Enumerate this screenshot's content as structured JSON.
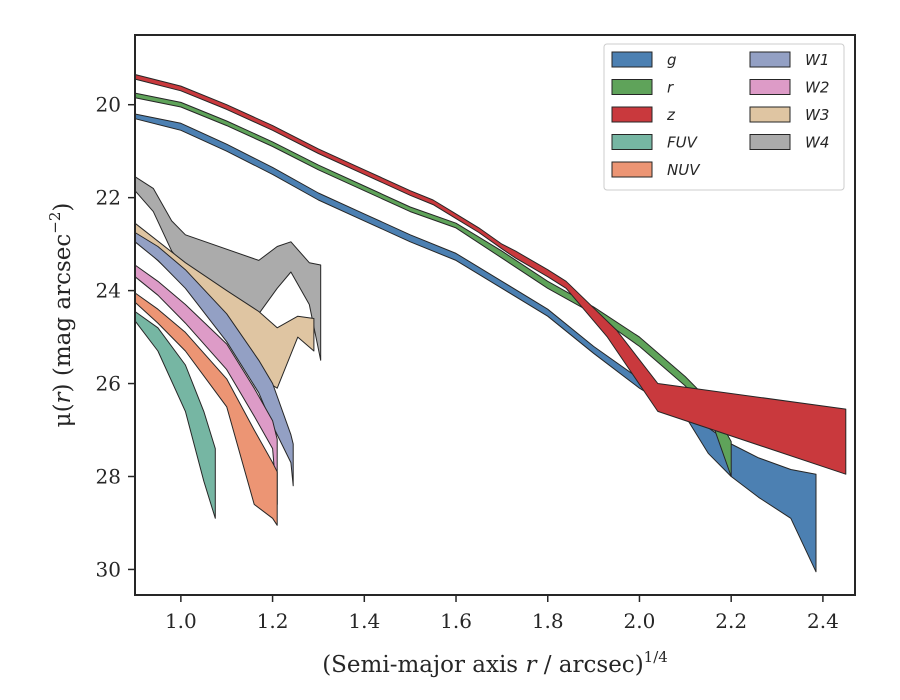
{
  "chart_data": {
    "type": "area",
    "xlabel_main": "(Semi-major axis ",
    "xlabel_var": "r",
    "xlabel_rest": " / arcsec)",
    "xlabel_sup": "1/4",
    "ylabel_main": "μ(",
    "ylabel_var": "r",
    "ylabel_rest": ") (mag arcsec",
    "ylabel_sup": "−2",
    "ylabel_end": ")",
    "xlim": [
      0.9,
      2.47
    ],
    "ylim": [
      30.55,
      18.5
    ],
    "y_inverted": true,
    "xticks": [
      1.0,
      1.2,
      1.4,
      1.6,
      1.8,
      2.0,
      2.2,
      2.4
    ],
    "xtick_labels": [
      "1.0",
      "1.2",
      "1.4",
      "1.6",
      "1.8",
      "2.0",
      "2.2",
      "2.4"
    ],
    "yticks": [
      20,
      22,
      24,
      26,
      28,
      30
    ],
    "ytick_labels": [
      "20",
      "22",
      "24",
      "26",
      "28",
      "30"
    ],
    "grid": false,
    "legend_position": "top-right",
    "legend_columns": 2,
    "series": [
      {
        "name": "W4",
        "color": "#ababab",
        "upper": [
          [
            0.9,
            21.55
          ],
          [
            0.94,
            21.8
          ],
          [
            0.98,
            22.5
          ],
          [
            1.01,
            22.8
          ],
          [
            1.17,
            23.35
          ],
          [
            1.21,
            23.05
          ],
          [
            1.24,
            22.95
          ],
          [
            1.28,
            23.4
          ],
          [
            1.305,
            23.45
          ]
        ],
        "lower": [
          [
            0.9,
            21.85
          ],
          [
            0.94,
            22.3
          ],
          [
            0.98,
            23.15
          ],
          [
            1.01,
            23.5
          ],
          [
            1.17,
            24.5
          ],
          [
            1.21,
            23.95
          ],
          [
            1.24,
            23.6
          ],
          [
            1.28,
            24.3
          ],
          [
            1.305,
            25.5
          ]
        ]
      },
      {
        "name": "W3",
        "color": "#dfc5a2",
        "upper": [
          [
            0.9,
            22.55
          ],
          [
            1.01,
            23.4
          ],
          [
            1.1,
            24.0
          ],
          [
            1.17,
            24.45
          ],
          [
            1.21,
            24.8
          ],
          [
            1.255,
            24.55
          ],
          [
            1.29,
            24.6
          ]
        ],
        "lower": [
          [
            0.9,
            22.9
          ],
          [
            1.01,
            23.9
          ],
          [
            1.1,
            24.95
          ],
          [
            1.17,
            25.85
          ],
          [
            1.21,
            26.1
          ],
          [
            1.255,
            25.0
          ],
          [
            1.29,
            25.3
          ]
        ]
      },
      {
        "name": "W1",
        "color": "#93a0c4",
        "upper": [
          [
            0.9,
            22.75
          ],
          [
            0.95,
            23.05
          ],
          [
            1.01,
            23.55
          ],
          [
            1.1,
            24.5
          ],
          [
            1.17,
            25.5
          ],
          [
            1.2,
            26.0
          ],
          [
            1.24,
            27.1
          ],
          [
            1.245,
            27.3
          ]
        ],
        "lower": [
          [
            0.9,
            22.95
          ],
          [
            0.95,
            23.35
          ],
          [
            1.01,
            23.95
          ],
          [
            1.1,
            25.1
          ],
          [
            1.17,
            26.2
          ],
          [
            1.2,
            26.9
          ],
          [
            1.24,
            27.7
          ],
          [
            1.245,
            28.2
          ]
        ]
      },
      {
        "name": "W2",
        "color": "#dd9bc7",
        "upper": [
          [
            0.9,
            23.45
          ],
          [
            0.95,
            23.8
          ],
          [
            1.01,
            24.3
          ],
          [
            1.1,
            25.15
          ],
          [
            1.16,
            26.1
          ],
          [
            1.2,
            26.8
          ],
          [
            1.21,
            27.2
          ]
        ],
        "lower": [
          [
            0.9,
            23.7
          ],
          [
            0.95,
            24.1
          ],
          [
            1.01,
            24.7
          ],
          [
            1.1,
            25.7
          ],
          [
            1.16,
            26.7
          ],
          [
            1.2,
            27.4
          ],
          [
            1.21,
            28.6
          ]
        ]
      },
      {
        "name": "NUV",
        "color": "#ec9574",
        "upper": [
          [
            0.9,
            24.05
          ],
          [
            0.95,
            24.4
          ],
          [
            1.01,
            24.9
          ],
          [
            1.1,
            25.9
          ],
          [
            1.16,
            27.0
          ],
          [
            1.2,
            27.7
          ],
          [
            1.21,
            27.9
          ]
        ],
        "lower": [
          [
            0.9,
            24.25
          ],
          [
            0.95,
            24.7
          ],
          [
            1.01,
            25.3
          ],
          [
            1.1,
            26.5
          ],
          [
            1.16,
            28.6
          ],
          [
            1.2,
            28.9
          ],
          [
            1.21,
            29.05
          ]
        ]
      },
      {
        "name": "FUV",
        "color": "#76b6a3",
        "upper": [
          [
            0.9,
            24.45
          ],
          [
            0.95,
            24.8
          ],
          [
            1.01,
            25.6
          ],
          [
            1.05,
            26.6
          ],
          [
            1.075,
            27.4
          ]
        ],
        "lower": [
          [
            0.9,
            24.65
          ],
          [
            0.95,
            25.3
          ],
          [
            1.01,
            26.6
          ],
          [
            1.05,
            28.1
          ],
          [
            1.075,
            28.9
          ]
        ]
      },
      {
        "name": "g",
        "color": "#4c80b2",
        "upper": [
          [
            0.9,
            20.2
          ],
          [
            1.0,
            20.4
          ],
          [
            1.1,
            20.85
          ],
          [
            1.2,
            21.35
          ],
          [
            1.3,
            21.9
          ],
          [
            1.4,
            22.35
          ],
          [
            1.5,
            22.8
          ],
          [
            1.6,
            23.2
          ],
          [
            1.7,
            23.8
          ],
          [
            1.8,
            24.4
          ],
          [
            1.9,
            25.2
          ],
          [
            2.0,
            25.9
          ],
          [
            2.1,
            26.4
          ],
          [
            2.15,
            26.95
          ],
          [
            2.2,
            27.3
          ],
          [
            2.26,
            27.6
          ],
          [
            2.33,
            27.85
          ],
          [
            2.385,
            27.95
          ]
        ],
        "lower": [
          [
            0.9,
            20.3
          ],
          [
            1.0,
            20.55
          ],
          [
            1.1,
            21.0
          ],
          [
            1.2,
            21.5
          ],
          [
            1.3,
            22.05
          ],
          [
            1.4,
            22.5
          ],
          [
            1.5,
            22.95
          ],
          [
            1.6,
            23.35
          ],
          [
            1.7,
            23.95
          ],
          [
            1.8,
            24.55
          ],
          [
            1.9,
            25.35
          ],
          [
            2.0,
            26.1
          ],
          [
            2.1,
            26.7
          ],
          [
            2.15,
            27.5
          ],
          [
            2.2,
            28.0
          ],
          [
            2.26,
            28.45
          ],
          [
            2.33,
            28.9
          ],
          [
            2.385,
            30.05
          ]
        ]
      },
      {
        "name": "r",
        "color": "#5fa35a",
        "upper": [
          [
            0.9,
            19.75
          ],
          [
            1.0,
            19.95
          ],
          [
            1.1,
            20.35
          ],
          [
            1.2,
            20.8
          ],
          [
            1.3,
            21.3
          ],
          [
            1.4,
            21.75
          ],
          [
            1.5,
            22.2
          ],
          [
            1.6,
            22.55
          ],
          [
            1.7,
            23.15
          ],
          [
            1.8,
            23.8
          ],
          [
            1.9,
            24.35
          ],
          [
            2.0,
            25.0
          ],
          [
            2.1,
            25.85
          ],
          [
            2.15,
            26.35
          ],
          [
            2.2,
            27.25
          ]
        ],
        "lower": [
          [
            0.9,
            19.85
          ],
          [
            1.0,
            20.05
          ],
          [
            1.1,
            20.45
          ],
          [
            1.2,
            20.9
          ],
          [
            1.3,
            21.4
          ],
          [
            1.4,
            21.85
          ],
          [
            1.5,
            22.3
          ],
          [
            1.6,
            22.65
          ],
          [
            1.7,
            23.3
          ],
          [
            1.8,
            23.95
          ],
          [
            1.9,
            24.5
          ],
          [
            2.0,
            25.2
          ],
          [
            2.1,
            26.05
          ],
          [
            2.15,
            26.6
          ],
          [
            2.2,
            28.0
          ]
        ]
      },
      {
        "name": "z",
        "color": "#c9393d",
        "upper": [
          [
            0.9,
            19.35
          ],
          [
            1.0,
            19.6
          ],
          [
            1.1,
            20.0
          ],
          [
            1.2,
            20.45
          ],
          [
            1.3,
            20.95
          ],
          [
            1.4,
            21.4
          ],
          [
            1.5,
            21.85
          ],
          [
            1.55,
            22.05
          ],
          [
            1.6,
            22.35
          ],
          [
            1.65,
            22.65
          ],
          [
            1.7,
            23.0
          ],
          [
            1.73,
            23.15
          ],
          [
            1.8,
            23.55
          ],
          [
            1.84,
            23.8
          ],
          [
            1.95,
            24.85
          ],
          [
            2.04,
            26.0
          ],
          [
            2.45,
            26.55
          ]
        ],
        "lower": [
          [
            0.9,
            19.45
          ],
          [
            1.0,
            19.7
          ],
          [
            1.1,
            20.1
          ],
          [
            1.2,
            20.55
          ],
          [
            1.3,
            21.05
          ],
          [
            1.4,
            21.5
          ],
          [
            1.5,
            21.95
          ],
          [
            1.55,
            22.15
          ],
          [
            1.6,
            22.45
          ],
          [
            1.65,
            22.75
          ],
          [
            1.7,
            23.1
          ],
          [
            1.73,
            23.3
          ],
          [
            1.8,
            23.7
          ],
          [
            1.84,
            23.95
          ],
          [
            1.93,
            25.0
          ],
          [
            2.04,
            26.6
          ],
          [
            2.45,
            27.95
          ]
        ]
      }
    ],
    "legend": [
      {
        "name": "g",
        "color": "#4c80b2"
      },
      {
        "name": "r",
        "color": "#5fa35a"
      },
      {
        "name": "z",
        "color": "#c9393d"
      },
      {
        "name": "FUV",
        "color": "#76b6a3"
      },
      {
        "name": "NUV",
        "color": "#ec9574"
      },
      {
        "name": "W1",
        "color": "#93a0c4"
      },
      {
        "name": "W2",
        "color": "#dd9bc7"
      },
      {
        "name": "W3",
        "color": "#dfc5a2"
      },
      {
        "name": "W4",
        "color": "#ababab"
      }
    ]
  }
}
